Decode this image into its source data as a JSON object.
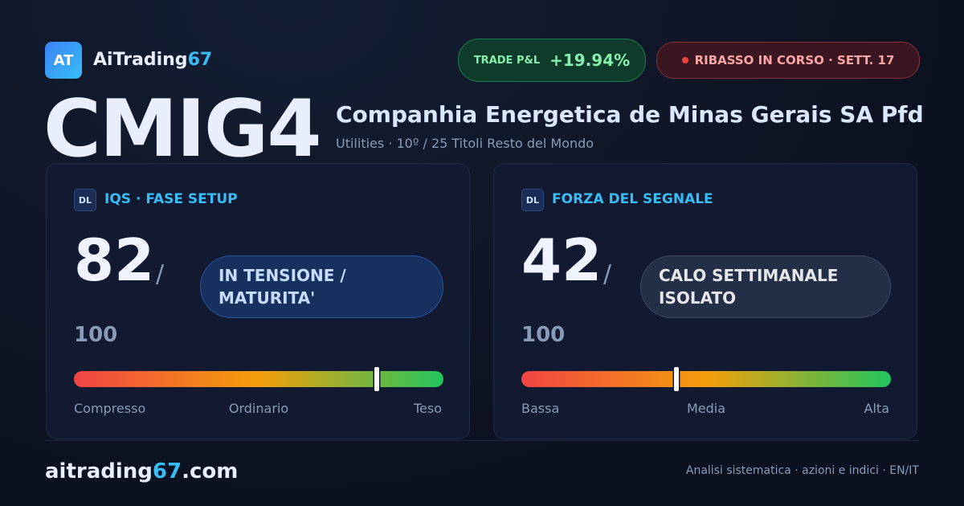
{
  "brand": {
    "logo": "AT",
    "name": "AiTrading",
    "accent": "67"
  },
  "badges": {
    "pnl_label": "TRADE P&L",
    "pnl_value": "+19.94%",
    "alert": "RIBASSO IN CORSO · SETT. 17"
  },
  "header": {
    "ticker": "CMIG4",
    "company": "Companhia Energetica de Minas Gerais SA Pfd",
    "subtitle": "Utilities · 10º / 25 Titoli Resto del Mondo"
  },
  "cards": [
    {
      "badge": "DL",
      "title": "IQS · FASE SETUP",
      "score": 82,
      "separator": "/",
      "max": 100,
      "status": "IN TENSIONE / MATURITA'",
      "scale": [
        "Compresso",
        "Ordinario",
        "Teso"
      ]
    },
    {
      "badge": "DL",
      "title": "FORZA DEL SEGNALE",
      "score": 42,
      "separator": "/",
      "max": 100,
      "status": "CALO SETTIMANALE ISOLATO",
      "scale": [
        "Bassa",
        "Media",
        "Alta"
      ]
    }
  ],
  "footer": {
    "site": [
      "aitrading",
      "67",
      ".com"
    ],
    "tagline": "Analisi sistematica · azioni e indici · EN/IT"
  }
}
